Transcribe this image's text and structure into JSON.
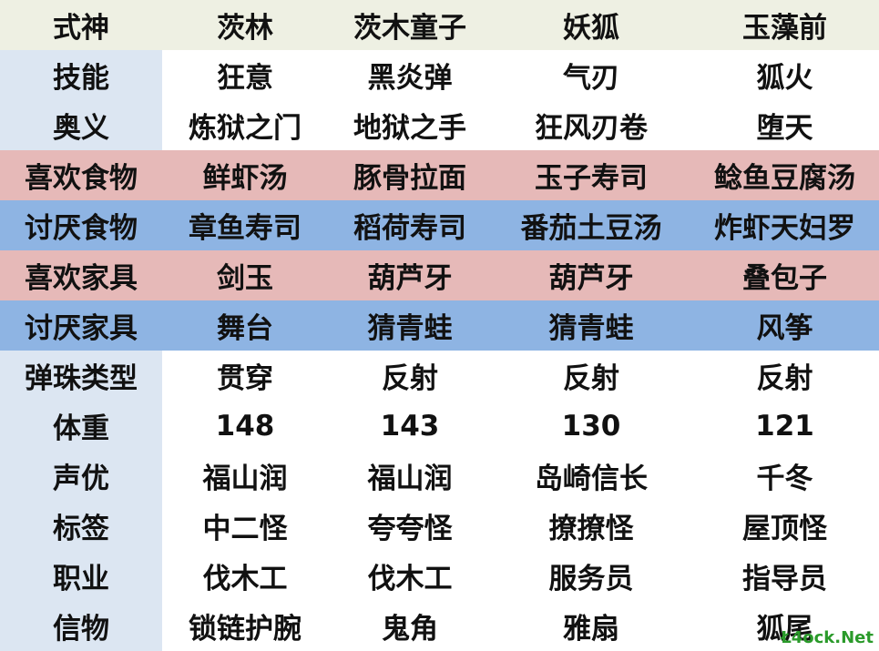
{
  "table": {
    "header": [
      "式神",
      "茨林",
      "茨木童子",
      "妖狐",
      "玉藻前"
    ],
    "rows": [
      [
        "技能",
        "狂意",
        "黑炎弹",
        "气刃",
        "狐火"
      ],
      [
        "奥义",
        "炼狱之门",
        "地狱之手",
        "狂风刃卷",
        "堕天"
      ],
      [
        "喜欢食物",
        "鲜虾汤",
        "豚骨拉面",
        "玉子寿司",
        "鲶鱼豆腐汤"
      ],
      [
        "讨厌食物",
        "章鱼寿司",
        "稻荷寿司",
        "番茄土豆汤",
        "炸虾天妇罗"
      ],
      [
        "喜欢家具",
        "剑玉",
        "葫芦牙",
        "葫芦牙",
        "叠包子"
      ],
      [
        "讨厌家具",
        "舞台",
        "猜青蛙",
        "猜青蛙",
        "风筝"
      ],
      [
        "弹珠类型",
        "贯穿",
        "反射",
        "反射",
        "反射"
      ],
      [
        "体重",
        148,
        143,
        130,
        121
      ],
      [
        "声优",
        "福山润",
        "福山润",
        "岛崎信长",
        "千冬"
      ],
      [
        "标签",
        "中二怪",
        "夸夸怪",
        "撩撩怪",
        "屋顶怪"
      ],
      [
        "职业",
        "伐木工",
        "伐木工",
        "服务员",
        "指导员"
      ],
      [
        "信物",
        "锁链护腕",
        "鬼角",
        "雅扇",
        "狐尾"
      ]
    ]
  },
  "watermark": "Ł4ock.Net"
}
